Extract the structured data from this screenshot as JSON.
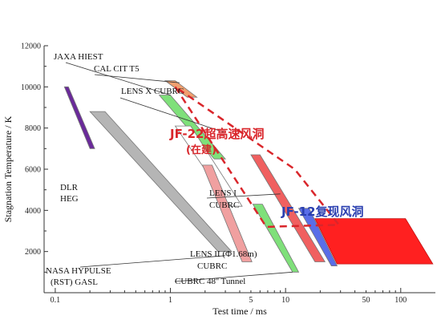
{
  "chart_data": {
    "type": "scatter",
    "xlabel": "Test time / ms",
    "ylabel": "Stagnation Temperature / K",
    "x_scale": "log",
    "xlim": [
      0.08,
      200
    ],
    "ylim": [
      0,
      12000
    ],
    "x_ticks": [
      0.1,
      1,
      10,
      100
    ],
    "x_tick_labels": [
      "0.1",
      "1",
      "10",
      "100"
    ],
    "x_minor_labeled": [
      5,
      50
    ],
    "x_minor_labels": [
      "5",
      "50"
    ],
    "y_ticks": [
      2000,
      4000,
      6000,
      8000,
      10000,
      12000
    ],
    "y_tick_labels": [
      "2000",
      "4000",
      "6000",
      "8000",
      "10000",
      "12000"
    ],
    "grid": false,
    "bands": [
      {
        "key": "purple",
        "color": "#6a2a9a",
        "x": [
          0.13,
          0.12,
          0.2,
          0.22
        ],
        "y": [
          10000,
          10000,
          7000,
          7000
        ]
      },
      {
        "key": "grey",
        "color": "#b5b5b5",
        "x": [
          0.27,
          0.2,
          2.6,
          3.4
        ],
        "y": [
          8800,
          8800,
          2000,
          2000
        ]
      },
      {
        "key": "orange",
        "color": "#f0a070",
        "x": [
          1.1,
          0.9,
          1.4,
          1.7
        ],
        "y": [
          10300,
          10300,
          9500,
          9500
        ]
      },
      {
        "key": "green-hiest",
        "color": "#7fe07a",
        "x": [
          1.0,
          0.8,
          2.4,
          3.0
        ],
        "y": [
          9600,
          9600,
          6500,
          6500
        ]
      },
      {
        "key": "white",
        "color": "#ffffff",
        "x": [
          1.5,
          1.1,
          3.3,
          4.2
        ],
        "y": [
          8100,
          8100,
          4200,
          4200
        ]
      },
      {
        "key": "pink",
        "color": "#f0a0a0",
        "x": [
          2.3,
          1.9,
          4.2,
          5.1
        ],
        "y": [
          6200,
          6200,
          1500,
          1500
        ]
      },
      {
        "key": "red-lens",
        "color": "#f06060",
        "x": [
          6.0,
          5.0,
          18.0,
          22.0
        ],
        "y": [
          6700,
          6700,
          1500,
          1500
        ]
      },
      {
        "key": "green-48",
        "color": "#7fe07a",
        "x": [
          6.3,
          5.2,
          11.5,
          13.0
        ],
        "y": [
          4300,
          4300,
          1000,
          1000
        ]
      },
      {
        "key": "blue",
        "color": "#5a6ee8",
        "x": [
          16.0,
          13.0,
          25.0,
          28.0
        ],
        "y": [
          4100,
          4100,
          1300,
          1300
        ]
      }
    ],
    "jf22_region": {
      "x": [
        1.1,
        6.8,
        29.0,
        12.0
      ],
      "y": [
        10000,
        3200,
        3300,
        6000
      ],
      "color": "#d9262b"
    },
    "jf12_region": {
      "x": [
        18.0,
        110.0,
        190.0,
        28.0
      ],
      "y": [
        3600,
        3600,
        1400,
        1400
      ],
      "color": "#ff2020"
    },
    "annotations": [
      {
        "text": "JAXA HIEST",
        "line_to": [
          1.0,
          9600
        ]
      },
      {
        "text": "CAL CIT T5",
        "line_to": [
          1.2,
          10200
        ]
      },
      {
        "text": "LENS X CUBRC",
        "line_to": [
          2.9,
          7800
        ]
      },
      {
        "text": "LENS I",
        "line_to": [
          9.0,
          4800
        ]
      },
      {
        "text": "CUBRC"
      },
      {
        "text": "DLR"
      },
      {
        "text": "HEG"
      },
      {
        "text": "NASA HYPULSE",
        "line_to": [
          3.0,
          1800
        ]
      },
      {
        "text": "(RST) GASL"
      },
      {
        "text": "LENS II (Φ1.68m)"
      },
      {
        "text": "CUBRC"
      },
      {
        "text": "CUBRC 48'' Tunnel",
        "line_to": [
          11.5,
          1000
        ]
      }
    ],
    "region_labels": {
      "jf22_line1": "JF-22超高速风洞",
      "jf22_line2": "(在建)",
      "jf12": "JF-12复现风洞"
    }
  }
}
